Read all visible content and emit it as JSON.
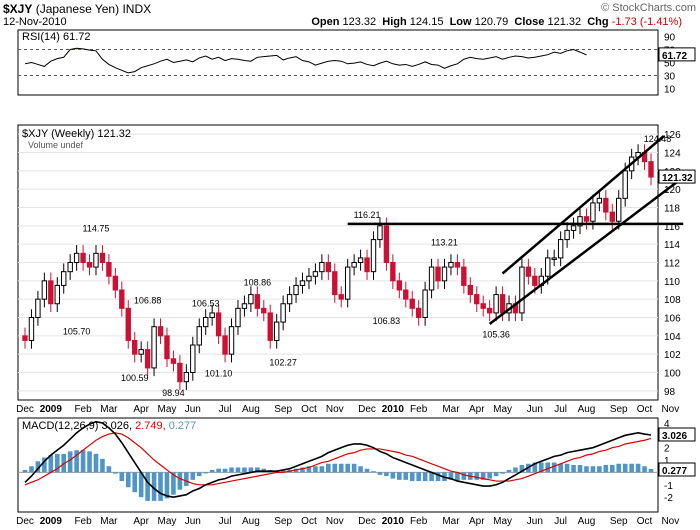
{
  "header": {
    "symbol": "$XJY",
    "name": "(Japanese Yen)",
    "exchange": "INDX",
    "date": "12-Nov-2010",
    "credit": "© StockCharts.com",
    "ohlc": {
      "open_label": "Open",
      "open": "123.32",
      "high_label": "High",
      "high": "124.15",
      "low_label": "Low",
      "low": "120.79",
      "close_label": "Close",
      "close": "121.32",
      "chg_label": "Chg",
      "chg": "-1.73 (-1.41%)"
    }
  },
  "colors": {
    "up": "#000000",
    "down": "#cc1133",
    "macd": "#000000",
    "signal": "#dd0000",
    "hist": "#4f95c9",
    "badge": "#000000"
  },
  "chart_data": [
    {
      "type": "line",
      "panel": "rsi",
      "title": "RSI(14) 61.72",
      "last_label": "61.72",
      "ylim": [
        0,
        100
      ],
      "yticks": [
        90,
        70,
        50,
        30,
        10
      ],
      "ytick_labels": [
        "90",
        "70",
        "50",
        "30",
        "10"
      ],
      "reference_lines": [
        70,
        30
      ],
      "values": [
        48,
        50,
        47,
        44,
        52,
        56,
        58,
        70,
        72,
        71,
        69,
        68,
        55,
        47,
        42,
        38,
        34,
        36,
        42,
        45,
        48,
        52,
        55,
        50,
        52,
        54,
        51,
        57,
        60,
        55,
        58,
        53,
        56,
        55,
        53,
        52,
        58,
        59,
        60,
        61,
        54,
        57,
        59,
        53,
        51,
        46,
        49,
        52,
        53,
        52,
        48,
        49,
        51,
        47,
        45,
        49,
        52,
        48,
        46,
        47,
        44,
        47,
        51,
        47,
        46,
        41,
        45,
        48,
        55,
        58,
        56,
        55,
        57,
        59,
        55,
        58,
        60,
        59,
        57,
        58,
        60,
        62,
        66,
        64,
        68,
        70,
        66,
        61.72
      ]
    },
    {
      "type": "candlestick",
      "panel": "price",
      "title": "$XJY (Weekly) 121.32",
      "volume_label": "Volume undef",
      "ylim": [
        97,
        127
      ],
      "yticks": [
        98,
        100,
        102,
        104,
        106,
        108,
        110,
        112,
        114,
        116,
        118,
        120,
        122,
        124,
        126
      ],
      "ytick_labels": [
        "98",
        "100",
        "102",
        "104",
        "106",
        "108",
        "110",
        "112",
        "114",
        "116",
        "118",
        "120",
        "122",
        "124",
        "126"
      ],
      "last_label": "121.32",
      "x_categories": [
        "Dec",
        "2009",
        "Feb",
        "Mar",
        "Apr",
        "May",
        "Jun",
        "Jul",
        "Aug",
        "Sep",
        "Oct",
        "Nov",
        "Dec",
        "2010",
        "Feb",
        "Mar",
        "Apr",
        "May",
        "Jun",
        "Jul",
        "Aug",
        "Sep",
        "Oct",
        "Nov"
      ],
      "x_category_positions": [
        0,
        4,
        9,
        13,
        18,
        22,
        26,
        31,
        35,
        40,
        44,
        48,
        53,
        57,
        61,
        66,
        70,
        74,
        79,
        83,
        87,
        92,
        96,
        100
      ],
      "closes": [
        103.5,
        106,
        108,
        110,
        107.5,
        109.5,
        111,
        112,
        113,
        112,
        111.5,
        113,
        112,
        110.5,
        109,
        107,
        103.5,
        102,
        102.5,
        100.5,
        105,
        104,
        101.5,
        101,
        99,
        100,
        103,
        105,
        106,
        106.5,
        104,
        102,
        105,
        107,
        107.5,
        108.5,
        107,
        106.5,
        103.5,
        105.5,
        107.5,
        108.5,
        109.5,
        110,
        110.5,
        111,
        112,
        111,
        108.5,
        108,
        111.5,
        112,
        112.5,
        111,
        114.5,
        116,
        112,
        110,
        109,
        108,
        107,
        106,
        109,
        111.5,
        110,
        111.5,
        112,
        111.5,
        109.5,
        108.5,
        107.5,
        107,
        106.5,
        108.5,
        106.5,
        107.5,
        106.5,
        111.5,
        110.5,
        109.5,
        110.5,
        112.5,
        112.5,
        114.5,
        115.5,
        116,
        117,
        116.5,
        118.5,
        119,
        117.5,
        116.5,
        119,
        122,
        123.5,
        124,
        123,
        121.32
      ],
      "annotations": [
        {
          "index": 11,
          "value": 114.75,
          "label": "114.75",
          "pos": "above"
        },
        {
          "index": 8,
          "value": 105.7,
          "label": "105.70",
          "pos": "below"
        },
        {
          "index": 19,
          "value": 106.88,
          "label": "106.88",
          "pos": "above"
        },
        {
          "index": 17,
          "value": 100.59,
          "label": "100.59",
          "pos": "below"
        },
        {
          "index": 23,
          "value": 98.94,
          "label": "98.94",
          "pos": "below"
        },
        {
          "index": 28,
          "value": 106.53,
          "label": "106.53",
          "pos": "above"
        },
        {
          "index": 30,
          "value": 101.1,
          "label": "101.10",
          "pos": "below"
        },
        {
          "index": 36,
          "value": 108.86,
          "label": "108.86",
          "pos": "above"
        },
        {
          "index": 40,
          "value": 102.27,
          "label": "102.27",
          "pos": "below"
        },
        {
          "index": 53,
          "value": 116.21,
          "label": "116.21",
          "pos": "above"
        },
        {
          "index": 56,
          "value": 106.83,
          "label": "106.83",
          "pos": "below"
        },
        {
          "index": 65,
          "value": 113.21,
          "label": "113.21",
          "pos": "above"
        },
        {
          "index": 73,
          "value": 105.36,
          "label": "105.36",
          "pos": "below"
        },
        {
          "index": 98,
          "value": 124.48,
          "label": "124.48",
          "pos": "above"
        }
      ],
      "trend_lines": [
        {
          "name": "resistance",
          "from": [
            50,
            116.21
          ],
          "to": [
            102,
            116.21
          ]
        },
        {
          "name": "channel-upper",
          "from": [
            74,
            110.8
          ],
          "to": [
            99,
            125.8
          ]
        },
        {
          "name": "channel-lower",
          "from": [
            72,
            105.3
          ],
          "to": [
            102,
            121.3
          ]
        }
      ]
    },
    {
      "type": "line",
      "panel": "macd",
      "title": "MACD(12,26,9) 3.026, 2.749, 0.277",
      "legend": [
        {
          "text": "MACD(12,26,9)",
          "color_key": "macd"
        },
        {
          "text": "3.026,",
          "color_key": "macd"
        },
        {
          "text": "2.749,",
          "color_key": "signal"
        },
        {
          "text": "0.277",
          "color_key": "hist"
        }
      ],
      "ylim": [
        -3.2,
        4.4
      ],
      "yticks": [
        4,
        2,
        1,
        0,
        -1,
        -2
      ],
      "ytick_labels": [
        "4",
        "2",
        "1",
        "0",
        "-1",
        "-2"
      ],
      "last_labels": {
        "macd": "3.026",
        "hist": "0.277"
      },
      "series": [
        {
          "key": "macd",
          "values": [
            -0.8,
            -0.3,
            0.3,
            0.9,
            1.4,
            1.8,
            2.2,
            2.7,
            3.2,
            3.6,
            3.9,
            4.1,
            4,
            3.6,
            3.1,
            2.4,
            1.6,
            0.8,
            0,
            -0.8,
            -1.3,
            -1.7,
            -1.9,
            -2,
            -1.9,
            -1.8,
            -1.5,
            -1.3,
            -1,
            -0.8,
            -0.6,
            -0.5,
            -0.3,
            -0.2,
            -0.1,
            0,
            0.1,
            0.1,
            0.1,
            0.1,
            0.2,
            0.3,
            0.5,
            0.7,
            0.9,
            1.1,
            1.3,
            1.6,
            1.8,
            2,
            2.2,
            2.3,
            2.3,
            2.2,
            2,
            1.7,
            1.5,
            1.2,
            1,
            0.8,
            0.6,
            0.4,
            0.2,
            0,
            -0.2,
            -0.4,
            -0.5,
            -0.7,
            -0.8,
            -0.9,
            -1,
            -1.1,
            -1.1,
            -1,
            -0.8,
            -0.5,
            -0.2,
            0.1,
            0.4,
            0.7,
            0.9,
            1.1,
            1.3,
            1.4,
            1.6,
            1.7,
            1.8,
            1.9,
            2,
            2.2,
            2.4,
            2.6,
            2.8,
            3,
            3.1,
            3.2,
            3.1,
            3.026
          ]
        },
        {
          "key": "signal",
          "values": [
            -1,
            -0.8,
            -0.6,
            -0.3,
            0,
            0.3,
            0.7,
            1,
            1.4,
            1.8,
            2.2,
            2.6,
            2.9,
            3.1,
            3.2,
            3.1,
            2.8,
            2.4,
            2,
            1.5,
            1,
            0.6,
            0.2,
            -0.2,
            -0.5,
            -0.7,
            -0.9,
            -1,
            -1,
            -1,
            -0.9,
            -0.8,
            -0.7,
            -0.6,
            -0.5,
            -0.4,
            -0.3,
            -0.2,
            -0.1,
            0,
            0,
            0.1,
            0.2,
            0.3,
            0.4,
            0.6,
            0.8,
            0.9,
            1.1,
            1.3,
            1.5,
            1.6,
            1.8,
            1.9,
            1.9,
            1.9,
            1.8,
            1.7,
            1.6,
            1.4,
            1.3,
            1.1,
            0.9,
            0.7,
            0.5,
            0.3,
            0.1,
            0,
            -0.2,
            -0.3,
            -0.4,
            -0.5,
            -0.6,
            -0.7,
            -0.7,
            -0.7,
            -0.6,
            -0.5,
            -0.3,
            -0.1,
            0.1,
            0.3,
            0.5,
            0.7,
            0.9,
            1.1,
            1.2,
            1.4,
            1.5,
            1.7,
            1.8,
            2,
            2.1,
            2.3,
            2.4,
            2.5,
            2.6,
            2.749
          ]
        }
      ]
    }
  ]
}
